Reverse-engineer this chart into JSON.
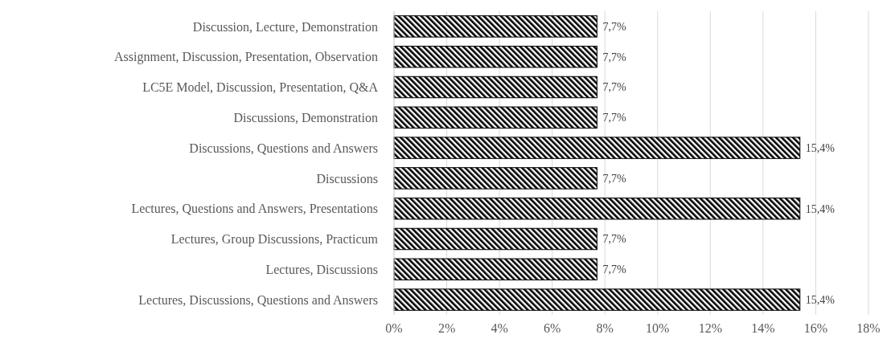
{
  "chart_data": {
    "type": "bar",
    "orientation": "horizontal",
    "categories": [
      "Discussion, Lecture, Demonstration",
      "Assignment, Discussion, Presentation, Observation",
      "LC5E Model, Discussion, Presentation, Q&A",
      "Discussions, Demonstration",
      "Discussions, Questions and Answers",
      "Discussions",
      "Lectures, Questions and Answers, Presentations",
      "Lectures, Group Discussions, Practicum",
      "Lectures, Discussions",
      "Lectures, Discussions, Questions and Answers"
    ],
    "values": [
      7.7,
      7.7,
      7.7,
      7.7,
      15.4,
      7.7,
      15.4,
      7.7,
      7.7,
      15.4
    ],
    "value_labels": [
      "7,7%",
      "7,7%",
      "7,7%",
      "7,7%",
      "15,4%",
      "7,7%",
      "15,4%",
      "7,7%",
      "7,7%",
      "15,4%"
    ],
    "color": "#000000",
    "xlim": [
      0,
      18
    ],
    "xticks": [
      {
        "value": 0,
        "label": "0%"
      },
      {
        "value": 2,
        "label": "2%"
      },
      {
        "value": 4,
        "label": "4%"
      },
      {
        "value": 6,
        "label": "6%"
      },
      {
        "value": 8,
        "label": "8%"
      },
      {
        "value": 10,
        "label": "10%"
      },
      {
        "value": 12,
        "label": "12%"
      },
      {
        "value": 14,
        "label": "14%"
      },
      {
        "value": 16,
        "label": "16%"
      },
      {
        "value": 18,
        "label": "18%"
      }
    ],
    "grid": "x"
  }
}
